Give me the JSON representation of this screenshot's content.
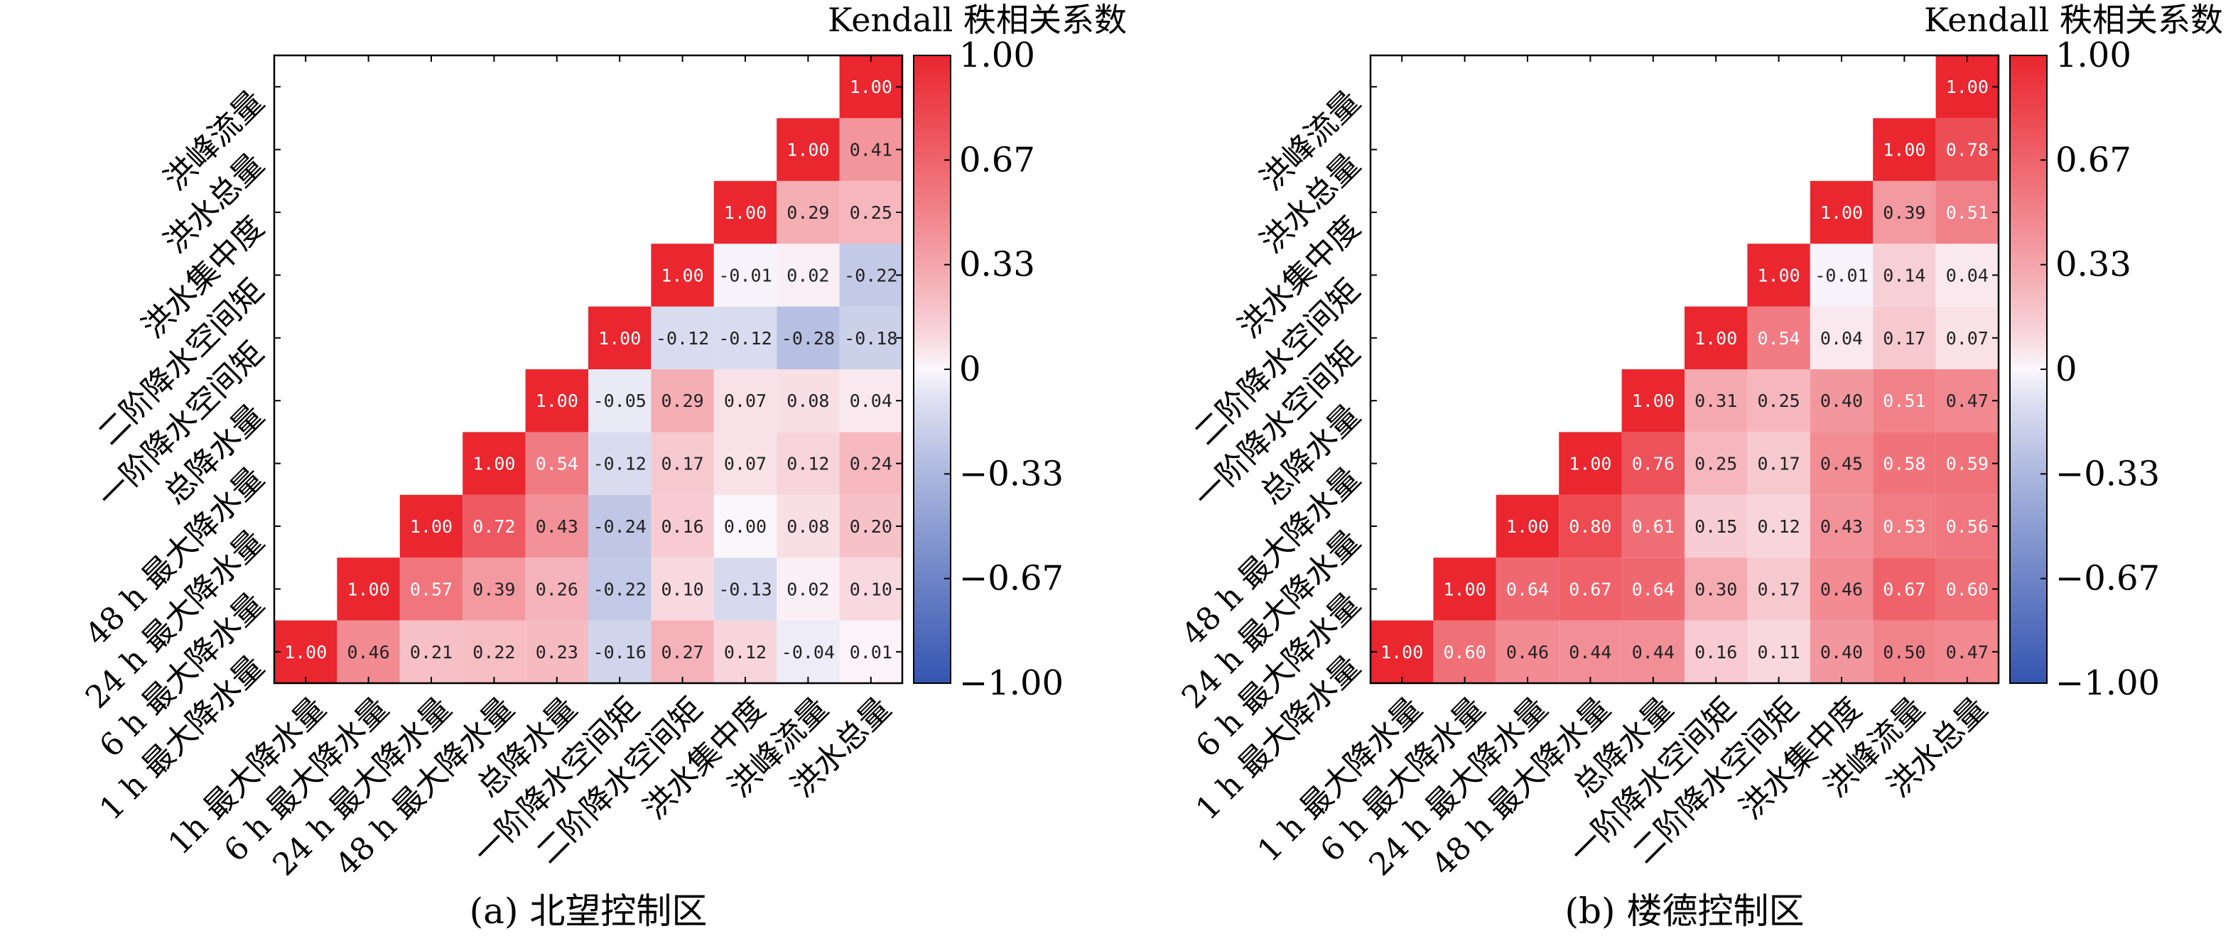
{
  "chart_data": [
    {
      "type": "heatmap",
      "subtitle": "(a) 北望控制区",
      "colorbar_label": "Kendall 秩相关系数",
      "colorbar_ticks": [
        "1.00",
        "0.67",
        "0.33",
        "0",
        "−0.33",
        "−0.67",
        "−1.00"
      ],
      "vlim": [
        -1,
        1
      ],
      "x_labels": [
        "1h 最大降水量",
        "6 h 最大降水量",
        "24 h 最大降水量",
        "48 h 最大降水量",
        "总降水量",
        "一阶降水空间矩",
        "二阶降水空间矩",
        "洪水集中度",
        "洪峰流量",
        "洪水总量"
      ],
      "y_labels": [
        "1 h 最大降水量",
        "6 h 最大降水量",
        "24 h 最大降水量",
        "48 h 最大降水量",
        "总降水量",
        "一阶降水空间矩",
        "二阶降水空间矩",
        "洪水集中度",
        "洪水总量",
        "洪峰流量"
      ],
      "values": [
        [
          1.0,
          0.46,
          0.21,
          0.22,
          0.23,
          -0.16,
          0.27,
          0.12,
          -0.04,
          0.01
        ],
        [
          null,
          1.0,
          0.57,
          0.39,
          0.26,
          -0.22,
          0.1,
          -0.13,
          0.02,
          0.1
        ],
        [
          null,
          null,
          1.0,
          0.72,
          0.43,
          -0.24,
          0.16,
          0.0,
          0.08,
          0.2
        ],
        [
          null,
          null,
          null,
          1.0,
          0.54,
          -0.12,
          0.17,
          0.07,
          0.12,
          0.24
        ],
        [
          null,
          null,
          null,
          null,
          1.0,
          -0.05,
          0.29,
          0.07,
          0.08,
          0.04
        ],
        [
          null,
          null,
          null,
          null,
          null,
          1.0,
          -0.12,
          -0.12,
          -0.28,
          -0.18
        ],
        [
          null,
          null,
          null,
          null,
          null,
          null,
          1.0,
          -0.01,
          0.02,
          -0.22
        ],
        [
          null,
          null,
          null,
          null,
          null,
          null,
          null,
          1.0,
          0.29,
          0.25
        ],
        [
          null,
          null,
          null,
          null,
          null,
          null,
          null,
          null,
          1.0,
          0.41
        ],
        [
          null,
          null,
          null,
          null,
          null,
          null,
          null,
          null,
          null,
          1.0
        ]
      ]
    },
    {
      "type": "heatmap",
      "subtitle": "(b) 楼德控制区",
      "colorbar_label": "Kendall 秩相关系数",
      "colorbar_ticks": [
        "1.00",
        "0.67",
        "0.33",
        "0",
        "−0.33",
        "−0.67",
        "−1.00"
      ],
      "vlim": [
        -1,
        1
      ],
      "x_labels": [
        "1 h 最大降水量",
        "6 h 最大降水量",
        "24 h 最大降水量",
        "48 h 最大降水量",
        "总降水量",
        "一阶降水空间矩",
        "二阶降水空间矩",
        "洪水集中度",
        "洪峰流量",
        "洪水总量"
      ],
      "y_labels": [
        "1 h 最大降水量",
        "6 h 最大降水量",
        "24 h 最大降水量",
        "48 h 最大降水量",
        "总降水量",
        "一阶降水空间矩",
        "二阶降水空间矩",
        "洪水集中度",
        "洪水总量",
        "洪峰流量"
      ],
      "values": [
        [
          1.0,
          0.6,
          0.46,
          0.44,
          0.44,
          0.16,
          0.11,
          0.4,
          0.5,
          0.47
        ],
        [
          null,
          1.0,
          0.64,
          0.67,
          0.64,
          0.3,
          0.17,
          0.46,
          0.67,
          0.6
        ],
        [
          null,
          null,
          1.0,
          0.8,
          0.61,
          0.15,
          0.12,
          0.43,
          0.53,
          0.56
        ],
        [
          null,
          null,
          null,
          1.0,
          0.76,
          0.25,
          0.17,
          0.45,
          0.58,
          0.59
        ],
        [
          null,
          null,
          null,
          null,
          1.0,
          0.31,
          0.25,
          0.4,
          0.51,
          0.47
        ],
        [
          null,
          null,
          null,
          null,
          null,
          1.0,
          0.54,
          0.04,
          0.17,
          0.07
        ],
        [
          null,
          null,
          null,
          null,
          null,
          null,
          1.0,
          -0.01,
          0.14,
          0.04
        ],
        [
          null,
          null,
          null,
          null,
          null,
          null,
          null,
          1.0,
          0.39,
          0.51
        ],
        [
          null,
          null,
          null,
          null,
          null,
          null,
          null,
          null,
          1.0,
          0.78
        ],
        [
          null,
          null,
          null,
          null,
          null,
          null,
          null,
          null,
          null,
          1.0
        ]
      ]
    }
  ]
}
